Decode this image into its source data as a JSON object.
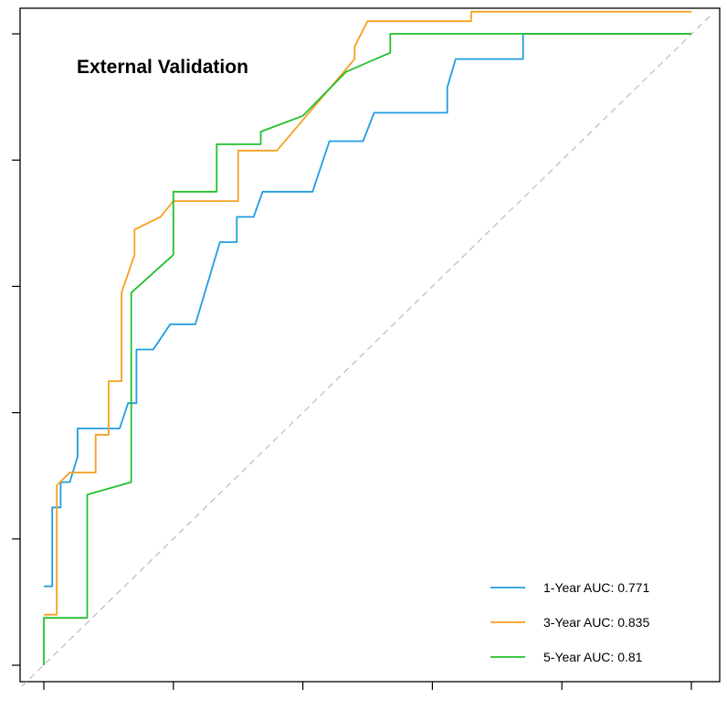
{
  "chart_data": {
    "type": "line",
    "title": "External Validation",
    "xlabel": "",
    "ylabel": "",
    "xlim": [
      -0.04,
      1.04
    ],
    "ylim": [
      -0.04,
      1.04
    ],
    "xticks": [
      0,
      0.2,
      0.4,
      0.6,
      0.8,
      1.0
    ],
    "yticks": [
      0,
      0.2,
      0.4,
      0.6,
      0.8,
      1.0
    ],
    "tick_labels_visible": false,
    "grid": false,
    "legend_position": "bottom-right",
    "reference_line": {
      "name": "chance",
      "points": [
        [
          0,
          0
        ],
        [
          1,
          1
        ]
      ],
      "color": "#bbbbbb",
      "style": "dashed"
    },
    "series": [
      {
        "name": "1-Year",
        "label": "1-Year AUC: 0.771",
        "auc": 0.771,
        "color": "#1f9de0",
        "points": [
          [
            0,
            0.125
          ],
          [
            0.013,
            0.125
          ],
          [
            0.013,
            0.25
          ],
          [
            0.026,
            0.25
          ],
          [
            0.026,
            0.29
          ],
          [
            0.04,
            0.29
          ],
          [
            0.052,
            0.33
          ],
          [
            0.052,
            0.375
          ],
          [
            0.117,
            0.375
          ],
          [
            0.13,
            0.415
          ],
          [
            0.143,
            0.415
          ],
          [
            0.143,
            0.5
          ],
          [
            0.169,
            0.5
          ],
          [
            0.195,
            0.54
          ],
          [
            0.234,
            0.54
          ],
          [
            0.272,
            0.67
          ],
          [
            0.298,
            0.67
          ],
          [
            0.298,
            0.71
          ],
          [
            0.324,
            0.71
          ],
          [
            0.338,
            0.75
          ],
          [
            0.415,
            0.75
          ],
          [
            0.441,
            0.83
          ],
          [
            0.493,
            0.83
          ],
          [
            0.51,
            0.875
          ],
          [
            0.623,
            0.875
          ],
          [
            0.623,
            0.915
          ],
          [
            0.636,
            0.96
          ],
          [
            0.74,
            0.96
          ],
          [
            0.74,
            1.0
          ],
          [
            1.0,
            1.0
          ]
        ]
      },
      {
        "name": "3-Year",
        "label": "3-Year AUC: 0.835",
        "auc": 0.835,
        "color": "#f5a020",
        "points": [
          [
            0,
            0.08
          ],
          [
            0.02,
            0.08
          ],
          [
            0.02,
            0.285
          ],
          [
            0.04,
            0.305
          ],
          [
            0.08,
            0.305
          ],
          [
            0.08,
            0.365
          ],
          [
            0.1,
            0.365
          ],
          [
            0.1,
            0.45
          ],
          [
            0.12,
            0.45
          ],
          [
            0.12,
            0.59
          ],
          [
            0.14,
            0.65
          ],
          [
            0.14,
            0.69
          ],
          [
            0.18,
            0.71
          ],
          [
            0.2,
            0.735
          ],
          [
            0.3,
            0.735
          ],
          [
            0.3,
            0.815
          ],
          [
            0.36,
            0.815
          ],
          [
            0.48,
            0.96
          ],
          [
            0.48,
            0.98
          ],
          [
            0.5,
            1.02
          ],
          [
            0.66,
            1.02
          ],
          [
            0.66,
            1.035
          ],
          [
            1.0,
            1.035
          ]
        ]
      },
      {
        "name": "5-Year",
        "label": "5-Year AUC: 0.81",
        "auc": 0.81,
        "color": "#22c02c",
        "points": [
          [
            0,
            0
          ],
          [
            0,
            0.075
          ],
          [
            0.067,
            0.075
          ],
          [
            0.067,
            0.27
          ],
          [
            0.135,
            0.29
          ],
          [
            0.135,
            0.59
          ],
          [
            0.2,
            0.65
          ],
          [
            0.2,
            0.75
          ],
          [
            0.267,
            0.75
          ],
          [
            0.267,
            0.825
          ],
          [
            0.335,
            0.825
          ],
          [
            0.335,
            0.845
          ],
          [
            0.4,
            0.87
          ],
          [
            0.467,
            0.94
          ],
          [
            0.535,
            0.97
          ],
          [
            0.535,
            1.0
          ],
          [
            1.0,
            1.0
          ]
        ]
      }
    ]
  }
}
